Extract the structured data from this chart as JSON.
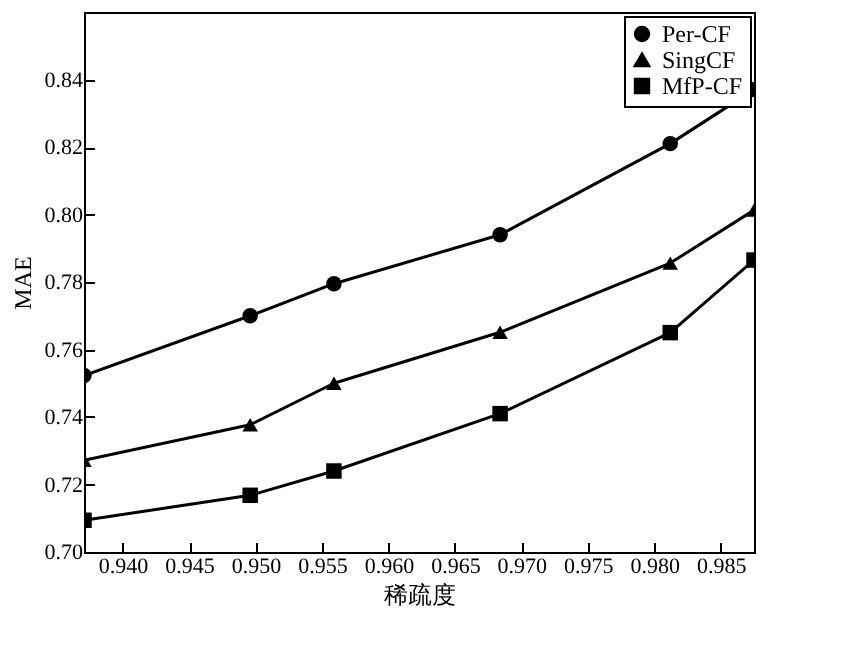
{
  "chart_data": {
    "type": "line",
    "xlabel": "稀疏度",
    "ylabel": "MAE",
    "x": [
      0.9371,
      0.9496,
      0.9559,
      0.9684,
      0.9812,
      0.9875
    ],
    "series": [
      {
        "name": "Per-CF",
        "color": "#000000",
        "marker": "circle",
        "values": [
          0.7523,
          0.77,
          0.7795,
          0.794,
          0.821,
          0.837
        ]
      },
      {
        "name": "SingCF",
        "color": "#000000",
        "marker": "triangle",
        "values": [
          0.7272,
          0.7377,
          0.75,
          0.7651,
          0.7856,
          0.8013
        ]
      },
      {
        "name": "MfP-CF",
        "color": "#000000",
        "marker": "square",
        "values": [
          0.7094,
          0.7168,
          0.724,
          0.741,
          0.765,
          0.7865
        ]
      }
    ],
    "xlim": [
      0.9371,
      0.9875
    ],
    "xticks": [
      {
        "value": 0.94,
        "label": "0.940"
      },
      0.945,
      {
        "value": 0.95,
        "label": "0.950"
      },
      0.955,
      {
        "value": 0.96,
        "label": "0.960"
      },
      0.965,
      {
        "value": 0.97,
        "label": "0.970"
      },
      0.975,
      {
        "value": 0.98,
        "label": "0.980"
      },
      0.985
    ],
    "ylim": [
      0.7,
      0.86
    ],
    "yticks": [
      {
        "value": 0.7,
        "label": "0.70"
      },
      0.72,
      0.74,
      0.76,
      0.78,
      {
        "value": 0.8,
        "label": "0.80"
      },
      0.82,
      0.84
    ],
    "grid": false,
    "legend": "top right",
    "line_style": "solid"
  }
}
